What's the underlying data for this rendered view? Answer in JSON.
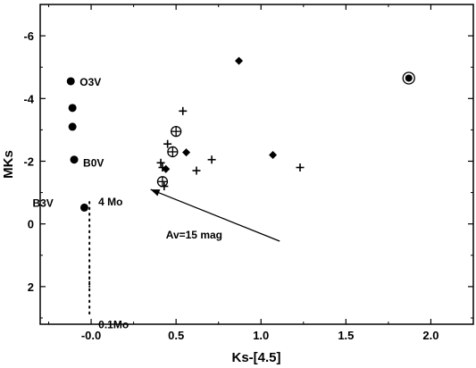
{
  "chart_data": {
    "type": "scatter",
    "xlabel": "Ks-[4.5]",
    "ylabel": "MKs",
    "xlim": [
      -0.3,
      2.25
    ],
    "ylim": [
      3.2,
      -7.0
    ],
    "y_inverted": true,
    "grid": false,
    "xticks": [
      {
        "v": -0.0,
        "label": "-0.0"
      },
      {
        "v": 0.5,
        "label": "0.5"
      },
      {
        "v": 1.0,
        "label": "1.0"
      },
      {
        "v": 1.5,
        "label": "1.5"
      },
      {
        "v": 2.0,
        "label": "2.0"
      }
    ],
    "yticks": [
      {
        "v": -6,
        "label": "-6"
      },
      {
        "v": -4,
        "label": "-4"
      },
      {
        "v": -2,
        "label": "-2"
      },
      {
        "v": 0,
        "label": "0"
      },
      {
        "v": 2,
        "label": "2"
      }
    ],
    "main_sequence": [
      {
        "x": -0.12,
        "y": -4.55,
        "label": "O3V"
      },
      {
        "x": -0.11,
        "y": -3.7,
        "label": ""
      },
      {
        "x": -0.11,
        "y": -3.1,
        "label": ""
      },
      {
        "x": -0.1,
        "y": -2.05,
        "label": "B0V"
      },
      {
        "x": -0.04,
        "y": -0.52,
        "label": "B3V"
      }
    ],
    "plus_points": [
      {
        "x": 0.41,
        "y": -1.95
      },
      {
        "x": 0.42,
        "y": -1.8
      },
      {
        "x": 0.45,
        "y": -2.55
      },
      {
        "x": 0.43,
        "y": -1.2
      },
      {
        "x": 0.54,
        "y": -3.6
      },
      {
        "x": 0.62,
        "y": -1.7
      },
      {
        "x": 0.71,
        "y": -2.05
      },
      {
        "x": 1.23,
        "y": -1.8
      }
    ],
    "diamond_points": [
      {
        "x": 0.44,
        "y": -1.75
      },
      {
        "x": 0.56,
        "y": -2.28
      },
      {
        "x": 0.87,
        "y": -5.2
      },
      {
        "x": 1.07,
        "y": -2.2
      }
    ],
    "circled_plus_points": [
      {
        "x": 0.42,
        "y": -1.35
      },
      {
        "x": 0.48,
        "y": -2.3
      },
      {
        "x": 0.5,
        "y": -2.95
      }
    ],
    "circled_dot_points": [
      {
        "x": 1.87,
        "y": -4.65
      }
    ],
    "dotted_track": {
      "x": -0.01,
      "y_top": -0.7,
      "y_bottom": 2.9,
      "top_label": "4 Mo",
      "bottom_label": "0.1Mo",
      "minor_points": [
        1.4,
        1.55,
        1.7,
        1.85,
        2.0
      ]
    },
    "reddening_vector": {
      "x_start": 1.11,
      "y_start": 0.55,
      "x_end": 0.35,
      "y_end": -1.1,
      "label": "Av=15 mag",
      "label_x": 0.44,
      "label_y": 0.35
    }
  }
}
